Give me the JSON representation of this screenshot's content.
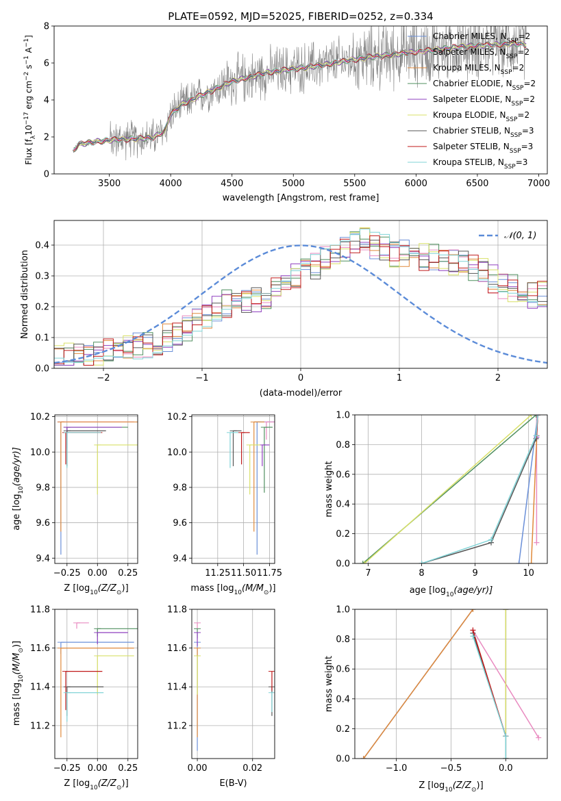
{
  "title": "PLATE=0592, MJD=52025, FIBERID=0252, z=0.334",
  "colors": {
    "chabrier_miles": "#6a8fd8",
    "salpeter_miles": "#e98ac0",
    "kroupa_miles": "#e0893a",
    "chabrier_elodie": "#4f8f5f",
    "salpeter_elodie": "#8e3fbf",
    "kroupa_elodie": "#d8e067",
    "chabrier_stelib": "#555555",
    "salpeter_stelib": "#c01a1a",
    "kroupa_stelib": "#7fd3d6",
    "data": "#808080",
    "normal": "#5b8bd8",
    "grid": "#b0b0b0"
  },
  "chart_data": [
    {
      "id": "spectrum",
      "type": "line",
      "title": "PLATE=0592, MJD=52025, FIBERID=0252, z=0.334",
      "xlabel": "wavelength [Angstrom, rest frame]",
      "ylabel_prefix": "Flux [f",
      "ylabel_sub": "λ",
      "ylabel_mid": "10",
      "ylabel_exp1": "−17",
      "ylabel_mid2": " erg cm",
      "ylabel_exp2": "−2",
      "ylabel_mid3": " s",
      "ylabel_exp3": "−1",
      "ylabel_end": " A",
      "ylabel_exp4": "−1",
      "ylabel_close": "]",
      "xlim": [
        3050,
        7070
      ],
      "ylim": [
        0,
        8
      ],
      "xticks": [
        3500,
        4000,
        4500,
        5000,
        5500,
        6000,
        6500,
        7000
      ],
      "yticks": [
        0,
        2,
        4,
        6,
        8
      ],
      "continuum": [
        [
          3200,
          1.2
        ],
        [
          3250,
          1.6
        ],
        [
          3400,
          1.75
        ],
        [
          3550,
          1.85
        ],
        [
          3700,
          1.9
        ],
        [
          3850,
          1.95
        ],
        [
          3950,
          2.3
        ],
        [
          4000,
          3.2
        ],
        [
          4100,
          3.8
        ],
        [
          4300,
          4.4
        ],
        [
          4500,
          5.0
        ],
        [
          4800,
          5.5
        ],
        [
          5200,
          5.85
        ],
        [
          5600,
          6.3
        ],
        [
          6000,
          6.6
        ],
        [
          6400,
          6.9
        ],
        [
          6800,
          7.05
        ],
        [
          6900,
          7.0
        ]
      ],
      "legend": [
        {
          "label": "Chabrier MILES, N",
          "sub": "SSP",
          "tail": "=2",
          "color_key": "chabrier_miles"
        },
        {
          "label": "Salpeter MILES, N",
          "sub": "SSP",
          "tail": "=2",
          "color_key": "salpeter_miles"
        },
        {
          "label": "Kroupa MILES, N",
          "sub": "SSP",
          "tail": "=2",
          "color_key": "kroupa_miles"
        },
        {
          "label": "Chabrier ELODIE, N",
          "sub": "SSP",
          "tail": "=2",
          "color_key": "chabrier_elodie"
        },
        {
          "label": "Salpeter ELODIE, N",
          "sub": "SSP",
          "tail": "=2",
          "color_key": "salpeter_elodie"
        },
        {
          "label": "Kroupa ELODIE, N",
          "sub": "SSP",
          "tail": "=2",
          "color_key": "kroupa_elodie"
        },
        {
          "label": "Chabrier STELIB, N",
          "sub": "SSP",
          "tail": "=3",
          "color_key": "chabrier_stelib"
        },
        {
          "label": "Salpeter STELIB, N",
          "sub": "SSP",
          "tail": "=3",
          "color_key": "salpeter_stelib"
        },
        {
          "label": "Kroupa STELIB, N",
          "sub": "SSP",
          "tail": "=3",
          "color_key": "kroupa_stelib"
        }
      ]
    },
    {
      "id": "residuals",
      "type": "histogram",
      "xlabel": "(data-model)/error",
      "ylabel": "Normed distribution",
      "xlim": [
        -2.5,
        2.5
      ],
      "ylim": [
        0,
        0.48
      ],
      "xticks": [
        -2,
        -1,
        0,
        1,
        2
      ],
      "yticks": [
        0.0,
        0.1,
        0.2,
        0.3,
        0.4
      ],
      "legend_label": "𝒩(0, 1)",
      "bin_width": 0.1,
      "bin_start": -2.5,
      "base_values": [
        0.04,
        0.04,
        0.045,
        0.05,
        0.05,
        0.055,
        0.06,
        0.07,
        0.075,
        0.08,
        0.09,
        0.1,
        0.11,
        0.13,
        0.15,
        0.17,
        0.19,
        0.21,
        0.22,
        0.22,
        0.23,
        0.24,
        0.26,
        0.28,
        0.3,
        0.31,
        0.33,
        0.35,
        0.37,
        0.39,
        0.41,
        0.42,
        0.4,
        0.39,
        0.37,
        0.37,
        0.36,
        0.36,
        0.36,
        0.35,
        0.35,
        0.34,
        0.33,
        0.31,
        0.29,
        0.27,
        0.26,
        0.25,
        0.24,
        0.24,
        0.24,
        0.24,
        0.23,
        0.21,
        0.19,
        0.18,
        0.17,
        0.15,
        0.14,
        0.13,
        0.12,
        0.11,
        0.1,
        0.09,
        0.085,
        0.08,
        0.07,
        0.06,
        0.055,
        0.05,
        0.045,
        0.04,
        0.035,
        0.03,
        0.03,
        0.03
      ],
      "grid": true,
      "legend_position": "top-right"
    },
    {
      "id": "age_vs_Z",
      "type": "errorbar",
      "xlabel_prefix": "Z [log",
      "xlabel_sub": "10",
      "xlabel_suffix": "(Z/Z",
      "xlabel_sub2": "⊙",
      "xlabel_close": ")]",
      "ylabel_prefix": "age  [log",
      "ylabel_sub": "10",
      "ylabel_suffix": "(age/yr)]",
      "xlim": [
        -0.35,
        0.33
      ],
      "ylim": [
        9.37,
        10.21
      ],
      "xticks": [
        -0.25,
        0.0,
        0.25
      ],
      "xticklabels": [
        "−0.25",
        "0.00",
        "0.25"
      ],
      "yticks": [
        9.4,
        9.6,
        9.8,
        10.0,
        10.2
      ],
      "points": [
        {
          "x": -0.3,
          "y": 10.17,
          "xerr": 0.0,
          "yerr": 0.75,
          "color_key": "chabrier_miles"
        },
        {
          "x": -0.3,
          "y": 10.17,
          "xerr": 0.6,
          "yerr": 0.0,
          "color_key": "salpeter_miles"
        },
        {
          "x": -0.3,
          "y": 10.17,
          "xerr": 0.65,
          "yerr": 0.62,
          "color_key": "kroupa_miles"
        },
        {
          "x": -0.25,
          "y": 10.14,
          "xerr": 0.5,
          "yerr": 0.1,
          "color_key": "chabrier_elodie"
        },
        {
          "x": -0.25,
          "y": 10.14,
          "xerr": 0.45,
          "yerr": 0.12,
          "color_key": "salpeter_elodie"
        },
        {
          "x": 0.0,
          "y": 10.04,
          "xerr": 0.35,
          "yerr": 0.28,
          "color_key": "kroupa_elodie"
        },
        {
          "x": -0.25,
          "y": 10.12,
          "xerr": 0.32,
          "yerr": 0.2,
          "color_key": "chabrier_stelib"
        },
        {
          "x": -0.26,
          "y": 10.11,
          "xerr": 0.3,
          "yerr": 0.18,
          "color_key": "salpeter_stelib"
        },
        {
          "x": -0.25,
          "y": 10.11,
          "xerr": 0.28,
          "yerr": 0.2,
          "color_key": "kroupa_stelib"
        }
      ]
    },
    {
      "id": "age_vs_mass",
      "type": "errorbar",
      "xlabel_prefix": "mass [log",
      "xlabel_sub": "10",
      "xlabel_suffix": "(M/M",
      "xlabel_sub2": "⊙",
      "xlabel_close": ")]",
      "xlim": [
        11.0,
        11.8
      ],
      "ylim": [
        9.37,
        10.21
      ],
      "xticks": [
        11.25,
        11.5,
        11.75
      ],
      "xticklabels": [
        "11.25",
        "11.50",
        "11.75"
      ],
      "yticks": [
        9.4,
        9.6,
        9.8,
        10.0,
        10.2
      ],
      "points": [
        {
          "x": 11.63,
          "y": 10.17,
          "xerr": 0.6,
          "yerr": 0.75,
          "color_key": "chabrier_miles"
        },
        {
          "x": 11.72,
          "y": 10.17,
          "xerr": 0.1,
          "yerr": 0.1,
          "color_key": "salpeter_miles"
        },
        {
          "x": 11.6,
          "y": 10.17,
          "xerr": 0.1,
          "yerr": 0.62,
          "color_key": "kroupa_miles"
        },
        {
          "x": 11.7,
          "y": 10.14,
          "xerr": 0.08,
          "yerr": 0.37,
          "color_key": "chabrier_elodie"
        },
        {
          "x": 11.68,
          "y": 10.04,
          "xerr": 0.07,
          "yerr": 0.12,
          "color_key": "salpeter_elodie"
        },
        {
          "x": 11.56,
          "y": 10.04,
          "xerr": 0.1,
          "yerr": 0.28,
          "color_key": "kroupa_elodie"
        },
        {
          "x": 11.4,
          "y": 10.12,
          "xerr": 0.08,
          "yerr": 0.2,
          "color_key": "chabrier_stelib"
        },
        {
          "x": 11.48,
          "y": 10.11,
          "xerr": 0.08,
          "yerr": 0.18,
          "color_key": "salpeter_stelib"
        },
        {
          "x": 11.37,
          "y": 10.11,
          "xerr": 0.08,
          "yerr": 0.2,
          "color_key": "kroupa_stelib"
        }
      ]
    },
    {
      "id": "mass_weight_vs_age",
      "type": "line",
      "ylabel": "mass weight",
      "xlabel_prefix": "age  [log",
      "xlabel_sub": "10",
      "xlabel_suffix": "(age/yr)]",
      "xlim": [
        6.75,
        10.35
      ],
      "ylim": [
        0,
        1
      ],
      "xticks": [
        7,
        8,
        9,
        10
      ],
      "yticks": [
        0.0,
        0.2,
        0.4,
        0.6,
        0.8,
        1.0
      ],
      "series": [
        {
          "color_key": "chabrier_miles",
          "x": [
            9.82,
            10.17
          ],
          "y": [
            0,
            1
          ]
        },
        {
          "color_key": "salpeter_miles",
          "x": [
            10.15,
            10.15
          ],
          "y": [
            0.14,
            1
          ]
        },
        {
          "color_key": "kroupa_miles",
          "x": [
            10.05,
            10.17
          ],
          "y": [
            0,
            1
          ]
        },
        {
          "color_key": "chabrier_elodie",
          "x": [
            6.9,
            10.14
          ],
          "y": [
            0,
            1
          ]
        },
        {
          "color_key": "salpeter_elodie",
          "x": [
            10.15,
            10.17
          ],
          "y": [
            0.85,
            1
          ]
        },
        {
          "color_key": "kroupa_elodie",
          "x": [
            6.93,
            10.05
          ],
          "y": [
            0,
            1
          ]
        },
        {
          "color_key": "chabrier_stelib",
          "x": [
            8.0,
            9.3,
            10.14,
            10.17
          ],
          "y": [
            0,
            0.14,
            0.84,
            1
          ]
        },
        {
          "color_key": "salpeter_stelib",
          "x": [
            10.15,
            10.17
          ],
          "y": [
            0.86,
            1
          ]
        },
        {
          "color_key": "kroupa_stelib",
          "x": [
            8.0,
            9.3,
            10.14,
            10.17
          ],
          "y": [
            0,
            0.16,
            0.86,
            1
          ]
        }
      ],
      "grid": true
    },
    {
      "id": "mass_vs_Z",
      "type": "errorbar",
      "xlabel_prefix": "Z [log",
      "xlabel_sub": "10",
      "xlabel_suffix": "(Z/Z",
      "xlabel_sub2": "⊙",
      "xlabel_close": ")]",
      "ylabel_prefix": "mass [log",
      "ylabel_sub": "10",
      "ylabel_suffix": "(M/M",
      "ylabel_sub2": "⊙",
      "ylabel_close": ")]",
      "xlim": [
        -0.35,
        0.33
      ],
      "ylim": [
        11.03,
        11.8
      ],
      "xticks": [
        -0.25,
        0.0,
        0.25
      ],
      "xticklabels": [
        "−0.25",
        "0.00",
        "0.25"
      ],
      "yticks": [
        11.2,
        11.4,
        11.6,
        11.8
      ],
      "points": [
        {
          "x": -0.3,
          "y": 11.63,
          "xerr": 0.6,
          "yerr": 0.06,
          "color_key": "chabrier_miles"
        },
        {
          "x": -0.17,
          "y": 11.73,
          "xerr": 0.1,
          "yerr": 0.03,
          "color_key": "salpeter_miles"
        },
        {
          "x": -0.3,
          "y": 11.6,
          "xerr": 0.6,
          "yerr": 0.46,
          "color_key": "kroupa_miles"
        },
        {
          "x": 0.0,
          "y": 11.7,
          "xerr": 0.35,
          "yerr": 0.04,
          "color_key": "chabrier_elodie"
        },
        {
          "x": 0.0,
          "y": 11.68,
          "xerr": 0.25,
          "yerr": 0.06,
          "color_key": "salpeter_elodie"
        },
        {
          "x": 0.0,
          "y": 11.56,
          "xerr": 0.3,
          "yerr": 0.2,
          "color_key": "kroupa_elodie"
        },
        {
          "x": -0.25,
          "y": 11.4,
          "xerr": 0.3,
          "yerr": 0.15,
          "color_key": "chabrier_stelib"
        },
        {
          "x": -0.26,
          "y": 11.48,
          "xerr": 0.3,
          "yerr": 0.2,
          "color_key": "salpeter_stelib"
        },
        {
          "x": -0.25,
          "y": 11.37,
          "xerr": 0.3,
          "yerr": 0.15,
          "color_key": "kroupa_stelib"
        }
      ]
    },
    {
      "id": "mass_vs_ebv",
      "type": "errorbar",
      "xlabel": "E(B-V)",
      "xlim": [
        -0.002,
        0.028
      ],
      "ylim": [
        11.03,
        11.8
      ],
      "xticks": [
        0.0,
        0.02
      ],
      "xticklabels": [
        "0.00",
        "0.02"
      ],
      "yticks": [
        11.2,
        11.4,
        11.6,
        11.8
      ],
      "points": [
        {
          "x": 0.0,
          "y": 11.63,
          "xerr": 0.0,
          "yerr": 0.56,
          "color_key": "chabrier_miles"
        },
        {
          "x": 0.0,
          "y": 11.73,
          "xerr": 0.0,
          "yerr": 0.03,
          "color_key": "salpeter_miles"
        },
        {
          "x": 0.0,
          "y": 11.6,
          "xerr": 0.0,
          "yerr": 0.46,
          "color_key": "kroupa_miles"
        },
        {
          "x": 0.0,
          "y": 11.7,
          "xerr": 0.0,
          "yerr": 0.05,
          "color_key": "chabrier_elodie"
        },
        {
          "x": 0.0,
          "y": 11.68,
          "xerr": 0.0,
          "yerr": 0.07,
          "color_key": "salpeter_elodie"
        },
        {
          "x": 0.0,
          "y": 11.56,
          "xerr": 0.0,
          "yerr": 0.2,
          "color_key": "kroupa_elodie"
        },
        {
          "x": 0.027,
          "y": 11.4,
          "xerr": 0.0,
          "yerr": 0.15,
          "color_key": "chabrier_stelib"
        },
        {
          "x": 0.027,
          "y": 11.48,
          "xerr": 0.0,
          "yerr": 0.1,
          "color_key": "salpeter_stelib"
        },
        {
          "x": 0.027,
          "y": 11.37,
          "xerr": 0.0,
          "yerr": 0.1,
          "color_key": "kroupa_stelib"
        }
      ]
    },
    {
      "id": "mass_weight_vs_Z",
      "type": "line",
      "ylabel": "mass weight",
      "xlabel_prefix": "Z [log",
      "xlabel_sub": "10",
      "xlabel_suffix": "(Z/Z",
      "xlabel_sub2": "⊙",
      "xlabel_close": ")]",
      "xlim": [
        -1.38,
        0.38
      ],
      "ylim": [
        0,
        1
      ],
      "xticks": [
        -1.0,
        -0.5,
        0.0
      ],
      "xticklabels": [
        "−1.0",
        "−0.5",
        "0.0"
      ],
      "yticks": [
        0.0,
        0.2,
        0.4,
        0.6,
        0.8,
        1.0
      ],
      "series": [
        {
          "color_key": "chabrier_miles",
          "x": [
            -1.3,
            -0.3
          ],
          "y": [
            0,
            1
          ]
        },
        {
          "color_key": "salpeter_miles",
          "x": [
            -0.3,
            0.3
          ],
          "y": [
            0.86,
            0.14
          ]
        },
        {
          "color_key": "kroupa_miles",
          "x": [
            -1.3,
            -0.3
          ],
          "y": [
            0,
            1
          ]
        },
        {
          "color_key": "chabrier_elodie",
          "x": [
            0.0,
            0.0
          ],
          "y": [
            0,
            1
          ]
        },
        {
          "color_key": "salpeter_elodie",
          "x": [
            0.0,
            0.0
          ],
          "y": [
            0,
            1
          ]
        },
        {
          "color_key": "kroupa_elodie",
          "x": [
            0.0,
            0.0
          ],
          "y": [
            0,
            1
          ]
        },
        {
          "color_key": "chabrier_stelib",
          "x": [
            -0.3,
            0.0,
            0.0
          ],
          "y": [
            0.84,
            0.15,
            0.0
          ]
        },
        {
          "color_key": "salpeter_stelib",
          "x": [
            -0.3,
            0.0
          ],
          "y": [
            0.86,
            0.15
          ]
        },
        {
          "color_key": "kroupa_stelib",
          "x": [
            -0.3,
            0.0,
            0.0
          ],
          "y": [
            0.82,
            0.15,
            0.0
          ]
        }
      ],
      "grid": true
    }
  ]
}
